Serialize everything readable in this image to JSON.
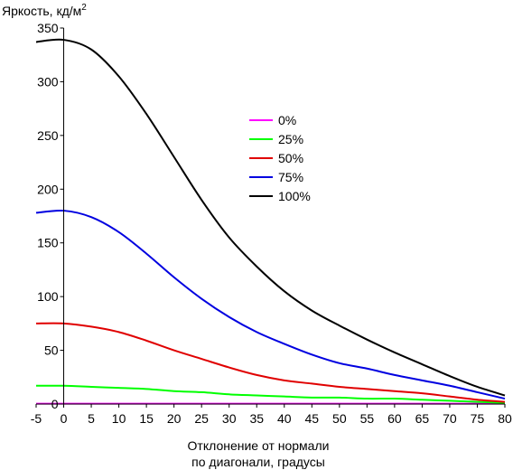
{
  "chart_data": {
    "type": "line",
    "ylabel": "Яркость, кд/м",
    "ylabel_superscript": "2",
    "xlabel_lines": [
      "Отклонение от нормали",
      "по диагонали, градусы"
    ],
    "xlim": [
      -5,
      80
    ],
    "ylim": [
      0,
      350
    ],
    "x_ticks": [
      -5,
      0,
      5,
      10,
      15,
      20,
      25,
      30,
      35,
      40,
      45,
      50,
      55,
      60,
      65,
      70,
      75,
      80
    ],
    "y_ticks": [
      0,
      50,
      100,
      150,
      200,
      250,
      300,
      350
    ],
    "grid": false,
    "legend_position": "center-right",
    "series": [
      {
        "name": "0%",
        "color": "#ff00ff",
        "x": [
          -5,
          0,
          10,
          20,
          30,
          40,
          50,
          60,
          70,
          80
        ],
        "y": [
          0.3,
          0.3,
          0.3,
          0.3,
          0.3,
          0.3,
          0.3,
          0.3,
          0.3,
          0.3
        ]
      },
      {
        "name": "25%",
        "color": "#00ff00",
        "x": [
          -5,
          0,
          5,
          10,
          15,
          20,
          25,
          30,
          35,
          40,
          45,
          50,
          55,
          60,
          65,
          70,
          75,
          80
        ],
        "y": [
          17,
          17,
          16,
          15,
          14,
          12,
          11,
          9,
          8,
          7,
          6,
          6,
          5,
          5,
          4,
          3,
          2,
          1
        ]
      },
      {
        "name": "50%",
        "color": "#e00000",
        "x": [
          -5,
          0,
          5,
          10,
          15,
          20,
          25,
          30,
          35,
          40,
          45,
          50,
          55,
          60,
          65,
          70,
          75,
          80
        ],
        "y": [
          75,
          75,
          72,
          67,
          59,
          50,
          42,
          34,
          27,
          22,
          19,
          16,
          14,
          12,
          10,
          7,
          4,
          2
        ]
      },
      {
        "name": "75%",
        "color": "#0000e0",
        "x": [
          -5,
          0,
          5,
          10,
          15,
          20,
          25,
          30,
          35,
          40,
          45,
          50,
          55,
          60,
          65,
          70,
          75,
          80
        ],
        "y": [
          178,
          180,
          174,
          160,
          140,
          118,
          98,
          81,
          67,
          56,
          46,
          38,
          33,
          27,
          22,
          17,
          11,
          5
        ]
      },
      {
        "name": "100%",
        "color": "#000000",
        "x": [
          -5,
          0,
          5,
          10,
          15,
          20,
          25,
          30,
          35,
          40,
          45,
          50,
          55,
          60,
          65,
          70,
          75,
          80
        ],
        "y": [
          337,
          339,
          330,
          305,
          270,
          230,
          190,
          155,
          128,
          105,
          87,
          73,
          60,
          48,
          37,
          26,
          16,
          8
        ]
      }
    ]
  }
}
